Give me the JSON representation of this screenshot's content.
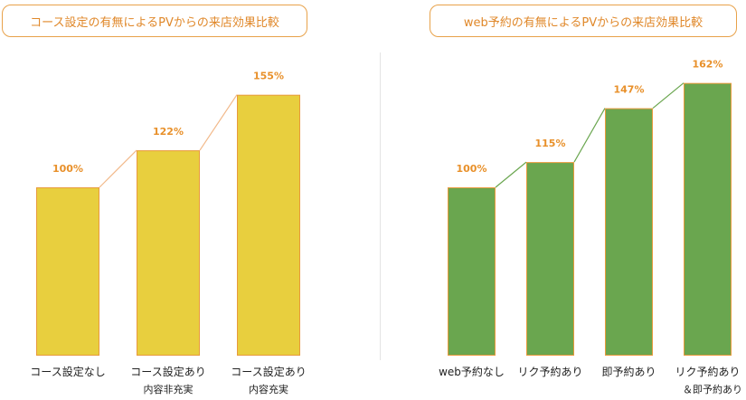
{
  "chart_data": [
    {
      "type": "bar",
      "title": "コース設定の有無によるPVからの来店効果比較",
      "categories": [
        [
          "コース設定なし"
        ],
        [
          "コース設定あり",
          "内容非充実"
        ],
        [
          "コース設定あり",
          "内容充実"
        ]
      ],
      "values": [
        100,
        122,
        155
      ],
      "value_labels": [
        "100%",
        "122%",
        "155%"
      ],
      "colors": {
        "bar": "#e8cf3e",
        "bar_edge": "#e89a3c",
        "connector": "#f2b98a",
        "label": "#e8902a"
      },
      "ylim": [
        0,
        175
      ]
    },
    {
      "type": "bar",
      "title": "web予約の有無によるPVからの来店効果比較",
      "categories": [
        [
          "web予約なし"
        ],
        [
          "リク予約あり"
        ],
        [
          "即予約あり"
        ],
        [
          "リク予約あり",
          "＆即予約あり"
        ]
      ],
      "values": [
        100,
        115,
        147,
        162
      ],
      "value_labels": [
        "100%",
        "115%",
        "147%",
        "162%"
      ],
      "colors": {
        "bar": "#6aa64f",
        "bar_edge": "#e89a3c",
        "connector": "#6aa64f",
        "label": "#e8902a"
      },
      "ylim": [
        0,
        175
      ]
    }
  ]
}
